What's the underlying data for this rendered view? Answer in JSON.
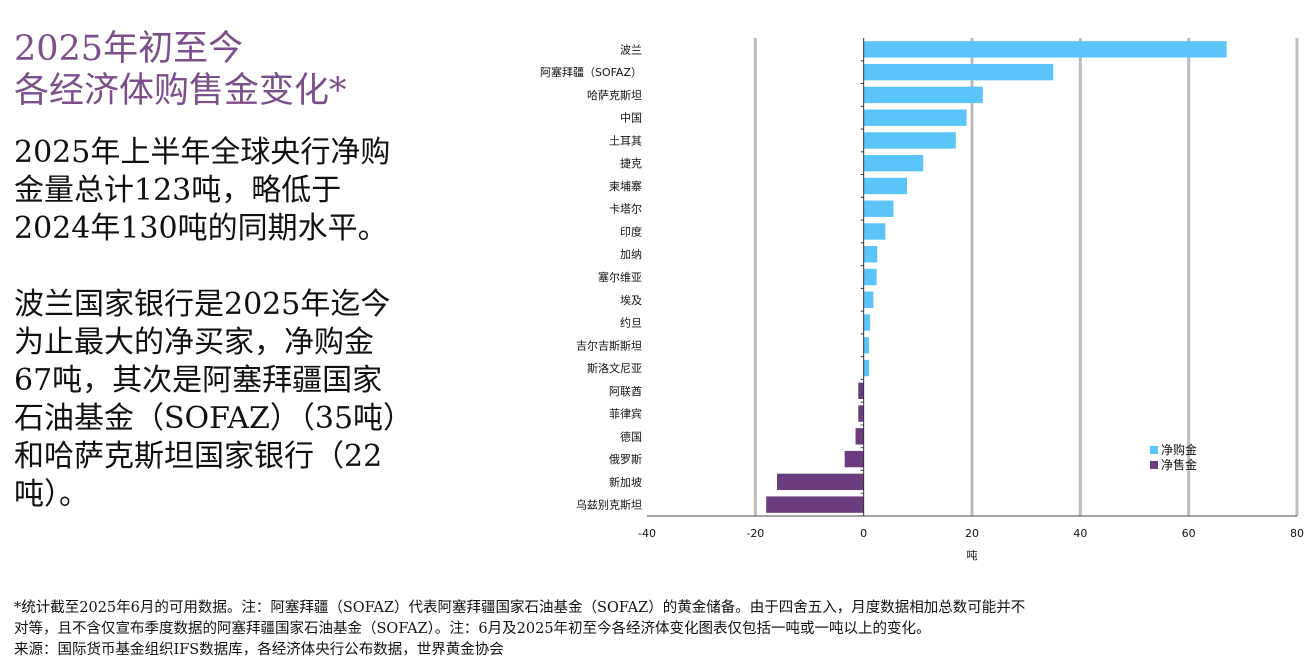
{
  "heading": {
    "line1": "2025年初至今",
    "line2": "各经济体购售金变化*"
  },
  "body": {
    "para1": "2025年上半年全球央行净购金量总计123吨，略低于2024年130吨的同期水平。",
    "para2": "波兰国家银行是2025年迄今为止最大的净买家，净购金67吨，其次是阿塞拜疆国家石油基金（SOFAZ）（35吨）和哈萨克斯坦国家银行（22吨）。"
  },
  "chart_data": {
    "type": "bar",
    "orientation": "horizontal",
    "categories": [
      "波兰",
      "阿塞拜疆（SOFAZ）",
      "哈萨克斯坦",
      "中国",
      "土耳其",
      "捷克",
      "柬埔寨",
      "卡塔尔",
      "印度",
      "加纳",
      "塞尔维亚",
      "埃及",
      "约旦",
      "吉尔吉斯斯坦",
      "斯洛文尼亚",
      "阿联酋",
      "菲律宾",
      "德国",
      "俄罗斯",
      "新加坡",
      "乌兹别克斯坦"
    ],
    "values": [
      67,
      35,
      22,
      19,
      17,
      11,
      8,
      5.5,
      4,
      2.5,
      2.4,
      1.8,
      1.2,
      1,
      1,
      -1,
      -1,
      -1.5,
      -3.5,
      -16,
      -18
    ],
    "series": [
      {
        "name": "净购金",
        "color": "#5bc4f8"
      },
      {
        "name": "净售金",
        "color": "#6a3d7f"
      }
    ],
    "xlabel": "吨",
    "xlim": [
      -40,
      80
    ],
    "xticks": [
      "-40",
      "-20",
      "0",
      "20",
      "40",
      "60",
      "80"
    ],
    "grid": true,
    "legend_position": "bottom-right"
  },
  "footnote": {
    "line1": "*统计截至2025年6月的可用数据。注：阿塞拜疆（SOFAZ）代表阿塞拜疆国家石油基金（SOFAZ）的黄金储备。由于四舍五入，月度数据相加总数可能并不",
    "line2": "对等，且不含仅宣布季度数据的阿塞拜疆国家石油基金（SOFAZ）。注：6月及2025年初至今各经济体变化图表仅包括一吨或一吨以上的变化。",
    "line3": "来源：国际货币基金组织IFS数据库，各经济体央行公布数据，世界黄金协会"
  }
}
